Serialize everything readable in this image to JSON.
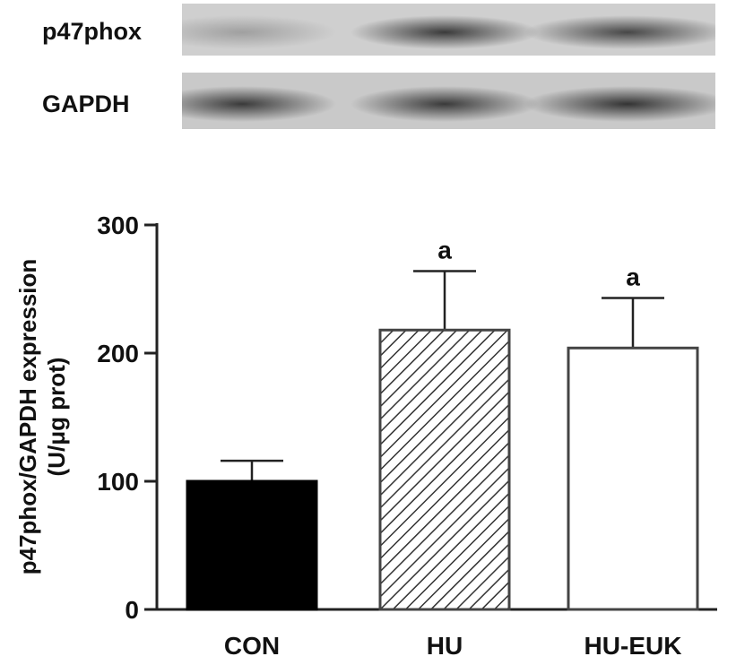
{
  "blot": {
    "rows": [
      {
        "label": "p47phox",
        "background": "#cfcfcf",
        "bands": [
          {
            "lane": "CON",
            "intensity": 0.35
          },
          {
            "lane": "HU",
            "intensity": 0.85
          },
          {
            "lane": "HU-EUK",
            "intensity": 0.8
          }
        ]
      },
      {
        "label": "GAPDH",
        "background": "#c9c9c9",
        "bands": [
          {
            "lane": "CON",
            "intensity": 0.85
          },
          {
            "lane": "HU",
            "intensity": 0.85
          },
          {
            "lane": "HU-EUK",
            "intensity": 0.88
          }
        ]
      }
    ]
  },
  "chart_data": {
    "type": "bar",
    "categories": [
      "CON",
      "HU",
      "HU-EUK"
    ],
    "values": [
      100,
      218,
      204
    ],
    "errors": [
      16,
      46,
      39
    ],
    "annotations": [
      "",
      "a",
      "a"
    ],
    "fills": [
      "solid-black",
      "diagonal-hatch",
      "white"
    ],
    "title": "",
    "xlabel": "",
    "ylabel": "p47phox/GAPDH expression",
    "ylabel_line2": "(U/μg prot)",
    "ylim": [
      0,
      300
    ],
    "yticks": [
      0,
      100,
      200,
      300
    ],
    "grid": false,
    "legend": false
  }
}
